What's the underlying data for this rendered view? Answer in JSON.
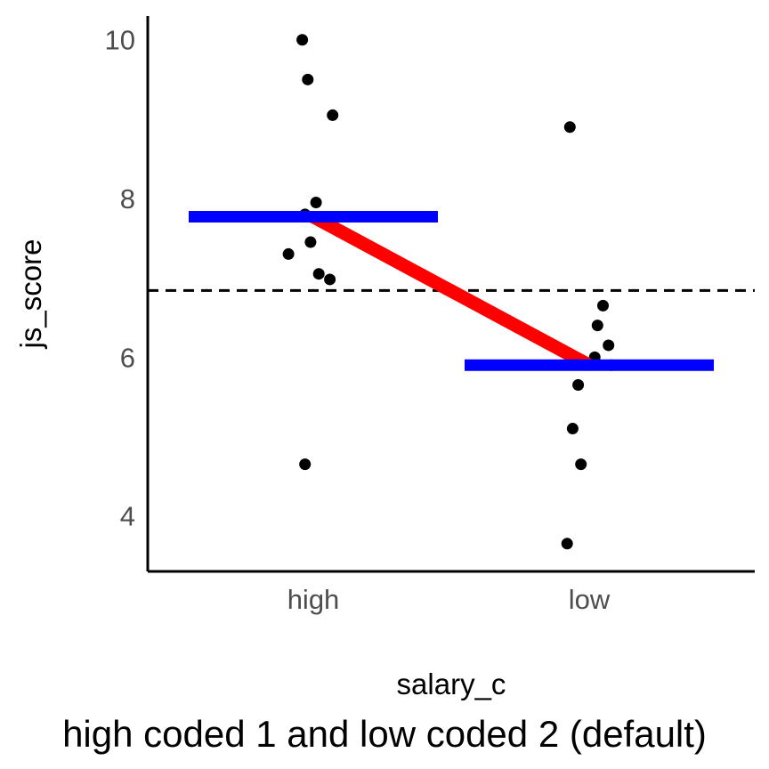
{
  "chart_data": {
    "type": "scatter",
    "xlabel": "salary_c",
    "ylabel": "js_score",
    "caption": "high coded 1 and low coded 2 (default)",
    "categories": [
      "high",
      "low"
    ],
    "y_ticks": [
      4,
      6,
      8,
      10
    ],
    "ylim": [
      3.3,
      10.3
    ],
    "grid": false,
    "points": {
      "high": [
        {
          "jitter": -0.04,
          "y": 10.0
        },
        {
          "jitter": -0.02,
          "y": 9.5
        },
        {
          "jitter": 0.07,
          "y": 9.05
        },
        {
          "jitter": 0.01,
          "y": 7.95
        },
        {
          "jitter": -0.03,
          "y": 7.8
        },
        {
          "jitter": -0.01,
          "y": 7.45
        },
        {
          "jitter": -0.09,
          "y": 7.3
        },
        {
          "jitter": 0.02,
          "y": 7.05
        },
        {
          "jitter": 0.06,
          "y": 6.98
        },
        {
          "jitter": -0.03,
          "y": 4.65
        }
      ],
      "low": [
        {
          "jitter": -0.07,
          "y": 8.9
        },
        {
          "jitter": 0.05,
          "y": 6.65
        },
        {
          "jitter": 0.03,
          "y": 6.4
        },
        {
          "jitter": 0.07,
          "y": 6.15
        },
        {
          "jitter": 0.02,
          "y": 6.0
        },
        {
          "jitter": 0.08,
          "y": 5.9
        },
        {
          "jitter": -0.04,
          "y": 5.65
        },
        {
          "jitter": -0.06,
          "y": 5.1
        },
        {
          "jitter": -0.03,
          "y": 4.65
        },
        {
          "jitter": -0.08,
          "y": 3.65
        }
      ]
    },
    "group_means": [
      {
        "category": "high",
        "value": 7.77
      },
      {
        "category": "low",
        "value": 5.9
      }
    ],
    "grand_mean": 6.84,
    "colors": {
      "points": "#000000",
      "mean_bars": "#0000ff",
      "mean_line": "#ff0000",
      "reference_line": "#000000",
      "axis": "#000000",
      "tick_labels": "#4d4d4d"
    }
  }
}
